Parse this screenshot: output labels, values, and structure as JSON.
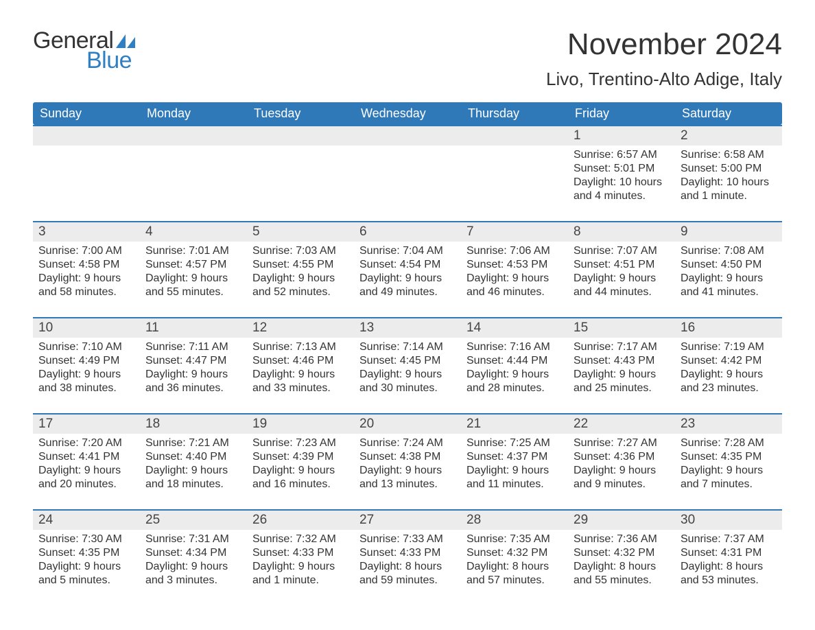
{
  "logo": {
    "word1": "General",
    "word2": "Blue",
    "color1": "#333333",
    "color2": "#2f7fc4",
    "shape_color": "#2f7fc4"
  },
  "title": "November 2024",
  "location": "Livo, Trentino-Alto Adige, Italy",
  "colors": {
    "header_bg": "#3079b9",
    "header_text": "#ffffff",
    "daynum_bg": "#ececec",
    "row_border": "#3079b9",
    "body_text": "#333333",
    "page_bg": "#ffffff"
  },
  "typography": {
    "title_fontsize": 44,
    "location_fontsize": 26,
    "dayheader_fontsize": 18,
    "daynum_fontsize": 19,
    "body_fontsize": 16
  },
  "day_headers": [
    "Sunday",
    "Monday",
    "Tuesday",
    "Wednesday",
    "Thursday",
    "Friday",
    "Saturday"
  ],
  "weeks": [
    [
      null,
      null,
      null,
      null,
      null,
      {
        "n": "1",
        "sunrise": "Sunrise: 6:57 AM",
        "sunset": "Sunset: 5:01 PM",
        "dl1": "Daylight: 10 hours",
        "dl2": "and 4 minutes."
      },
      {
        "n": "2",
        "sunrise": "Sunrise: 6:58 AM",
        "sunset": "Sunset: 5:00 PM",
        "dl1": "Daylight: 10 hours",
        "dl2": "and 1 minute."
      }
    ],
    [
      {
        "n": "3",
        "sunrise": "Sunrise: 7:00 AM",
        "sunset": "Sunset: 4:58 PM",
        "dl1": "Daylight: 9 hours",
        "dl2": "and 58 minutes."
      },
      {
        "n": "4",
        "sunrise": "Sunrise: 7:01 AM",
        "sunset": "Sunset: 4:57 PM",
        "dl1": "Daylight: 9 hours",
        "dl2": "and 55 minutes."
      },
      {
        "n": "5",
        "sunrise": "Sunrise: 7:03 AM",
        "sunset": "Sunset: 4:55 PM",
        "dl1": "Daylight: 9 hours",
        "dl2": "and 52 minutes."
      },
      {
        "n": "6",
        "sunrise": "Sunrise: 7:04 AM",
        "sunset": "Sunset: 4:54 PM",
        "dl1": "Daylight: 9 hours",
        "dl2": "and 49 minutes."
      },
      {
        "n": "7",
        "sunrise": "Sunrise: 7:06 AM",
        "sunset": "Sunset: 4:53 PM",
        "dl1": "Daylight: 9 hours",
        "dl2": "and 46 minutes."
      },
      {
        "n": "8",
        "sunrise": "Sunrise: 7:07 AM",
        "sunset": "Sunset: 4:51 PM",
        "dl1": "Daylight: 9 hours",
        "dl2": "and 44 minutes."
      },
      {
        "n": "9",
        "sunrise": "Sunrise: 7:08 AM",
        "sunset": "Sunset: 4:50 PM",
        "dl1": "Daylight: 9 hours",
        "dl2": "and 41 minutes."
      }
    ],
    [
      {
        "n": "10",
        "sunrise": "Sunrise: 7:10 AM",
        "sunset": "Sunset: 4:49 PM",
        "dl1": "Daylight: 9 hours",
        "dl2": "and 38 minutes."
      },
      {
        "n": "11",
        "sunrise": "Sunrise: 7:11 AM",
        "sunset": "Sunset: 4:47 PM",
        "dl1": "Daylight: 9 hours",
        "dl2": "and 36 minutes."
      },
      {
        "n": "12",
        "sunrise": "Sunrise: 7:13 AM",
        "sunset": "Sunset: 4:46 PM",
        "dl1": "Daylight: 9 hours",
        "dl2": "and 33 minutes."
      },
      {
        "n": "13",
        "sunrise": "Sunrise: 7:14 AM",
        "sunset": "Sunset: 4:45 PM",
        "dl1": "Daylight: 9 hours",
        "dl2": "and 30 minutes."
      },
      {
        "n": "14",
        "sunrise": "Sunrise: 7:16 AM",
        "sunset": "Sunset: 4:44 PM",
        "dl1": "Daylight: 9 hours",
        "dl2": "and 28 minutes."
      },
      {
        "n": "15",
        "sunrise": "Sunrise: 7:17 AM",
        "sunset": "Sunset: 4:43 PM",
        "dl1": "Daylight: 9 hours",
        "dl2": "and 25 minutes."
      },
      {
        "n": "16",
        "sunrise": "Sunrise: 7:19 AM",
        "sunset": "Sunset: 4:42 PM",
        "dl1": "Daylight: 9 hours",
        "dl2": "and 23 minutes."
      }
    ],
    [
      {
        "n": "17",
        "sunrise": "Sunrise: 7:20 AM",
        "sunset": "Sunset: 4:41 PM",
        "dl1": "Daylight: 9 hours",
        "dl2": "and 20 minutes."
      },
      {
        "n": "18",
        "sunrise": "Sunrise: 7:21 AM",
        "sunset": "Sunset: 4:40 PM",
        "dl1": "Daylight: 9 hours",
        "dl2": "and 18 minutes."
      },
      {
        "n": "19",
        "sunrise": "Sunrise: 7:23 AM",
        "sunset": "Sunset: 4:39 PM",
        "dl1": "Daylight: 9 hours",
        "dl2": "and 16 minutes."
      },
      {
        "n": "20",
        "sunrise": "Sunrise: 7:24 AM",
        "sunset": "Sunset: 4:38 PM",
        "dl1": "Daylight: 9 hours",
        "dl2": "and 13 minutes."
      },
      {
        "n": "21",
        "sunrise": "Sunrise: 7:25 AM",
        "sunset": "Sunset: 4:37 PM",
        "dl1": "Daylight: 9 hours",
        "dl2": "and 11 minutes."
      },
      {
        "n": "22",
        "sunrise": "Sunrise: 7:27 AM",
        "sunset": "Sunset: 4:36 PM",
        "dl1": "Daylight: 9 hours",
        "dl2": "and 9 minutes."
      },
      {
        "n": "23",
        "sunrise": "Sunrise: 7:28 AM",
        "sunset": "Sunset: 4:35 PM",
        "dl1": "Daylight: 9 hours",
        "dl2": "and 7 minutes."
      }
    ],
    [
      {
        "n": "24",
        "sunrise": "Sunrise: 7:30 AM",
        "sunset": "Sunset: 4:35 PM",
        "dl1": "Daylight: 9 hours",
        "dl2": "and 5 minutes."
      },
      {
        "n": "25",
        "sunrise": "Sunrise: 7:31 AM",
        "sunset": "Sunset: 4:34 PM",
        "dl1": "Daylight: 9 hours",
        "dl2": "and 3 minutes."
      },
      {
        "n": "26",
        "sunrise": "Sunrise: 7:32 AM",
        "sunset": "Sunset: 4:33 PM",
        "dl1": "Daylight: 9 hours",
        "dl2": "and 1 minute."
      },
      {
        "n": "27",
        "sunrise": "Sunrise: 7:33 AM",
        "sunset": "Sunset: 4:33 PM",
        "dl1": "Daylight: 8 hours",
        "dl2": "and 59 minutes."
      },
      {
        "n": "28",
        "sunrise": "Sunrise: 7:35 AM",
        "sunset": "Sunset: 4:32 PM",
        "dl1": "Daylight: 8 hours",
        "dl2": "and 57 minutes."
      },
      {
        "n": "29",
        "sunrise": "Sunrise: 7:36 AM",
        "sunset": "Sunset: 4:32 PM",
        "dl1": "Daylight: 8 hours",
        "dl2": "and 55 minutes."
      },
      {
        "n": "30",
        "sunrise": "Sunrise: 7:37 AM",
        "sunset": "Sunset: 4:31 PM",
        "dl1": "Daylight: 8 hours",
        "dl2": "and 53 minutes."
      }
    ]
  ]
}
